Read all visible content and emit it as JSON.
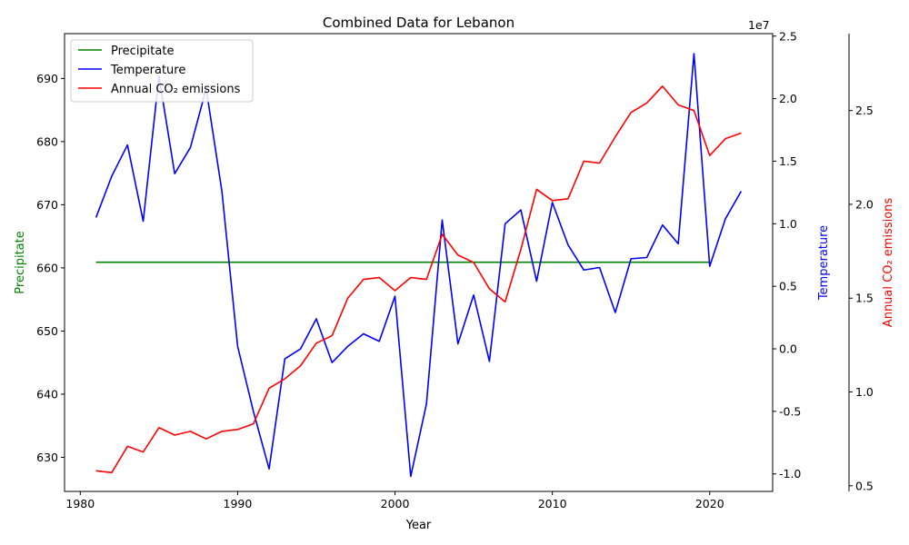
{
  "chart_data": {
    "type": "line",
    "title": "Combined Data for Lebanon",
    "xlabel": "Year",
    "x_ticks": [
      1980,
      1990,
      2000,
      2010,
      2020
    ],
    "xlim": [
      1979.0,
      2024.0
    ],
    "years": [
      1981,
      1982,
      1983,
      1984,
      1985,
      1986,
      1987,
      1988,
      1989,
      1990,
      1991,
      1992,
      1993,
      1994,
      1995,
      1996,
      1997,
      1998,
      1999,
      2000,
      2001,
      2002,
      2003,
      2004,
      2005,
      2006,
      2007,
      2008,
      2009,
      2010,
      2011,
      2012,
      2013,
      2014,
      2015,
      2016,
      2017,
      2018,
      2019,
      2020,
      2021,
      2022
    ],
    "series": [
      {
        "name": "Precipitate",
        "axis": "left",
        "color": "#008000",
        "x_start": 1981,
        "x_end": 2020,
        "values_constant": 660.9
      },
      {
        "name": "Temperature",
        "axis": "right",
        "color": "#0000ff",
        "values": [
          10.5,
          13.8,
          16.3,
          10.2,
          21.8,
          14.0,
          16.1,
          20.8,
          12.6,
          0.2,
          -5.0,
          -9.6,
          -0.8,
          0.0,
          2.4,
          -1.1,
          0.2,
          1.2,
          0.6,
          4.2,
          -10.2,
          -4.4,
          10.3,
          0.4,
          4.3,
          -1.0,
          10.0,
          11.1,
          5.4,
          11.7,
          8.3,
          6.3,
          6.5,
          2.9,
          7.2,
          7.3,
          9.9,
          8.4,
          23.6,
          6.6,
          10.4,
          12.6
        ]
      },
      {
        "name": "Annual CO₂ emissions",
        "axis": "far_right",
        "color": "#ff0000",
        "values": [
          0.58,
          0.57,
          0.71,
          0.68,
          0.81,
          0.77,
          0.79,
          0.75,
          0.79,
          0.8,
          0.83,
          1.02,
          1.07,
          1.14,
          1.26,
          1.3,
          1.5,
          1.6,
          1.61,
          1.54,
          1.61,
          1.6,
          1.84,
          1.73,
          1.69,
          1.55,
          1.48,
          1.76,
          2.08,
          2.02,
          2.03,
          2.23,
          2.22,
          2.36,
          2.49,
          2.54,
          2.63,
          2.53,
          2.5,
          2.26,
          2.35,
          2.38
        ]
      }
    ],
    "left_axis": {
      "label": "Precipitate",
      "color": "#008000",
      "ylim": [
        624.6,
        697.1
      ],
      "ticks": [
        630,
        640,
        650,
        660,
        670,
        680,
        690
      ]
    },
    "right_axis": {
      "label": "Temperature",
      "color": "#0000ff",
      "ylim": [
        -11.4,
        25.2
      ],
      "ticks": [
        -1.0,
        -0.5,
        0.0,
        0.5,
        1.0,
        1.5,
        2.0,
        2.5
      ],
      "tick_scale": 10,
      "offset_text": "1e7"
    },
    "far_right_axis": {
      "label": "Annual CO₂ emissions",
      "color": "#ff0000",
      "ylim": [
        0.47,
        2.91
      ],
      "ticks": [
        0.5,
        1.0,
        1.5,
        2.0,
        2.5
      ]
    },
    "legend": {
      "placement": "top-left",
      "entries": [
        "Precipitate",
        "Temperature",
        "Annual CO₂ emissions"
      ]
    },
    "grid": false
  }
}
